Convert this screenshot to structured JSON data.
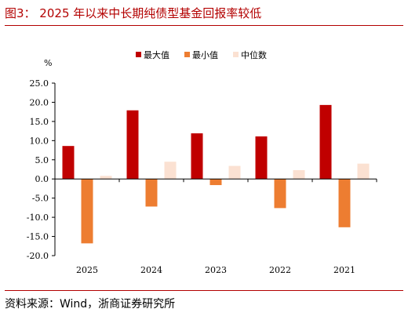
{
  "header": {
    "title": "图3：  2025 年以来中长期纯债型基金回报率较低"
  },
  "footer": {
    "source": "资料来源：Wind，浙商证券研究所"
  },
  "chart_data": {
    "type": "bar",
    "unit_label": "%",
    "categories": [
      "2025",
      "2024",
      "2023",
      "2022",
      "2021"
    ],
    "series": [
      {
        "name": "最大值",
        "color": "#c00000",
        "values": [
          8.6,
          17.9,
          11.9,
          11.1,
          19.3
        ]
      },
      {
        "name": "最小值",
        "color": "#ed7d31",
        "values": [
          -16.8,
          -7.2,
          -1.6,
          -7.6,
          -12.6
        ]
      },
      {
        "name": "中位数",
        "color": "#fbe1d2",
        "values": [
          0.8,
          4.5,
          3.4,
          2.3,
          4.0
        ]
      }
    ],
    "ylim": [
      -20,
      25
    ],
    "yticks": [
      "-20.0",
      "-15.0",
      "-10.0",
      "-5.0",
      "0.0",
      "5.0",
      "10.0",
      "15.0",
      "20.0",
      "25.0"
    ],
    "legend_position": "top-center",
    "grid": false
  }
}
